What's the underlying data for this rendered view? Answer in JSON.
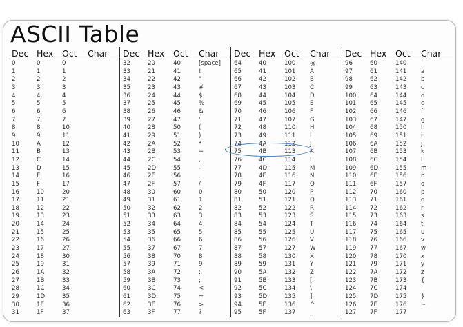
{
  "title": "ASCII Table",
  "headers": [
    "Dec",
    "Hex",
    "Oct",
    "Char"
  ],
  "groups": [
    [
      [
        "0",
        "0",
        "0",
        ""
      ],
      [
        "1",
        "1",
        "1",
        ""
      ],
      [
        "2",
        "2",
        "2",
        ""
      ],
      [
        "3",
        "3",
        "3",
        ""
      ],
      [
        "4",
        "4",
        "4",
        ""
      ],
      [
        "5",
        "5",
        "5",
        ""
      ],
      [
        "6",
        "6",
        "6",
        ""
      ],
      [
        "7",
        "7",
        "7",
        ""
      ],
      [
        "8",
        "8",
        "10",
        ""
      ],
      [
        "9",
        "9",
        "11",
        ""
      ],
      [
        "10",
        "A",
        "12",
        ""
      ],
      [
        "11",
        "B",
        "13",
        ""
      ],
      [
        "12",
        "C",
        "14",
        ""
      ],
      [
        "13",
        "D",
        "15",
        ""
      ],
      [
        "14",
        "E",
        "16",
        ""
      ],
      [
        "15",
        "F",
        "17",
        ""
      ],
      [
        "16",
        "10",
        "20",
        ""
      ],
      [
        "17",
        "11",
        "21",
        ""
      ],
      [
        "18",
        "12",
        "22",
        ""
      ],
      [
        "19",
        "13",
        "23",
        ""
      ],
      [
        "20",
        "14",
        "24",
        ""
      ],
      [
        "21",
        "15",
        "25",
        ""
      ],
      [
        "22",
        "16",
        "26",
        ""
      ],
      [
        "23",
        "17",
        "27",
        ""
      ],
      [
        "24",
        "18",
        "30",
        ""
      ],
      [
        "25",
        "19",
        "31",
        ""
      ],
      [
        "26",
        "1A",
        "32",
        ""
      ],
      [
        "27",
        "1B",
        "33",
        ""
      ],
      [
        "28",
        "1C",
        "34",
        ""
      ],
      [
        "29",
        "1D",
        "35",
        ""
      ],
      [
        "30",
        "1E",
        "36",
        ""
      ],
      [
        "31",
        "1F",
        "37",
        ""
      ]
    ],
    [
      [
        "32",
        "20",
        "40",
        "[space]"
      ],
      [
        "33",
        "21",
        "41",
        "!"
      ],
      [
        "34",
        "22",
        "42",
        "\""
      ],
      [
        "35",
        "23",
        "43",
        "#"
      ],
      [
        "36",
        "24",
        "44",
        "$"
      ],
      [
        "37",
        "25",
        "45",
        "%"
      ],
      [
        "38",
        "26",
        "46",
        "&"
      ],
      [
        "39",
        "27",
        "47",
        "'"
      ],
      [
        "40",
        "28",
        "50",
        "("
      ],
      [
        "41",
        "29",
        "51",
        ")"
      ],
      [
        "42",
        "2A",
        "52",
        "*"
      ],
      [
        "43",
        "2B",
        "53",
        "+"
      ],
      [
        "44",
        "2C",
        "54",
        ","
      ],
      [
        "45",
        "2D",
        "55",
        "-"
      ],
      [
        "46",
        "2E",
        "56",
        "."
      ],
      [
        "47",
        "2F",
        "57",
        "/"
      ],
      [
        "48",
        "30",
        "60",
        "0"
      ],
      [
        "49",
        "31",
        "61",
        "1"
      ],
      [
        "50",
        "32",
        "62",
        "2"
      ],
      [
        "51",
        "33",
        "63",
        "3"
      ],
      [
        "52",
        "34",
        "64",
        "4"
      ],
      [
        "53",
        "35",
        "65",
        "5"
      ],
      [
        "54",
        "36",
        "66",
        "6"
      ],
      [
        "55",
        "37",
        "67",
        "7"
      ],
      [
        "56",
        "38",
        "70",
        "8"
      ],
      [
        "57",
        "39",
        "71",
        "9"
      ],
      [
        "58",
        "3A",
        "72",
        ":"
      ],
      [
        "59",
        "3B",
        "73",
        ";"
      ],
      [
        "60",
        "3C",
        "74",
        "<"
      ],
      [
        "61",
        "3D",
        "75",
        "="
      ],
      [
        "62",
        "3E",
        "76",
        ">"
      ],
      [
        "63",
        "3F",
        "77",
        "?"
      ]
    ],
    [
      [
        "64",
        "40",
        "100",
        "@"
      ],
      [
        "65",
        "41",
        "101",
        "A"
      ],
      [
        "66",
        "42",
        "102",
        "B"
      ],
      [
        "67",
        "43",
        "103",
        "C"
      ],
      [
        "68",
        "44",
        "104",
        "D"
      ],
      [
        "69",
        "45",
        "105",
        "E"
      ],
      [
        "70",
        "46",
        "106",
        "F"
      ],
      [
        "71",
        "47",
        "107",
        "G"
      ],
      [
        "72",
        "48",
        "110",
        "H"
      ],
      [
        "73",
        "49",
        "111",
        "I"
      ],
      [
        "74",
        "4A",
        "112",
        "J"
      ],
      [
        "75",
        "4B",
        "113",
        "K"
      ],
      [
        "76",
        "4C",
        "114",
        "L"
      ],
      [
        "77",
        "4D",
        "115",
        "M"
      ],
      [
        "78",
        "4E",
        "116",
        "N"
      ],
      [
        "79",
        "4F",
        "117",
        "O"
      ],
      [
        "80",
        "50",
        "120",
        "P"
      ],
      [
        "81",
        "51",
        "121",
        "Q"
      ],
      [
        "82",
        "52",
        "122",
        "R"
      ],
      [
        "83",
        "53",
        "123",
        "S"
      ],
      [
        "84",
        "54",
        "124",
        "T"
      ],
      [
        "85",
        "55",
        "125",
        "U"
      ],
      [
        "86",
        "56",
        "126",
        "V"
      ],
      [
        "87",
        "57",
        "127",
        "W"
      ],
      [
        "88",
        "58",
        "130",
        "X"
      ],
      [
        "89",
        "59",
        "131",
        "Y"
      ],
      [
        "90",
        "5A",
        "132",
        "Z"
      ],
      [
        "91",
        "5B",
        "133",
        "["
      ],
      [
        "92",
        "5C",
        "134",
        "\\"
      ],
      [
        "93",
        "5D",
        "135",
        "]"
      ],
      [
        "94",
        "5E",
        "136",
        "^"
      ],
      [
        "95",
        "5F",
        "137",
        "_"
      ]
    ],
    [
      [
        "96",
        "60",
        "140",
        "`"
      ],
      [
        "97",
        "61",
        "141",
        "a"
      ],
      [
        "98",
        "62",
        "142",
        "b"
      ],
      [
        "99",
        "63",
        "143",
        "c"
      ],
      [
        "100",
        "64",
        "144",
        "d"
      ],
      [
        "101",
        "65",
        "145",
        "e"
      ],
      [
        "102",
        "66",
        "146",
        "f"
      ],
      [
        "103",
        "67",
        "147",
        "g"
      ],
      [
        "104",
        "68",
        "150",
        "h"
      ],
      [
        "105",
        "69",
        "151",
        "i"
      ],
      [
        "106",
        "6A",
        "152",
        "j"
      ],
      [
        "107",
        "6B",
        "153",
        "k"
      ],
      [
        "108",
        "6C",
        "154",
        "l"
      ],
      [
        "109",
        "6D",
        "155",
        "m"
      ],
      [
        "110",
        "6E",
        "156",
        "n"
      ],
      [
        "111",
        "6F",
        "157",
        "o"
      ],
      [
        "112",
        "70",
        "160",
        "p"
      ],
      [
        "113",
        "71",
        "161",
        "q"
      ],
      [
        "114",
        "72",
        "162",
        "r"
      ],
      [
        "115",
        "73",
        "163",
        "s"
      ],
      [
        "116",
        "74",
        "164",
        "t"
      ],
      [
        "117",
        "75",
        "165",
        "u"
      ],
      [
        "118",
        "76",
        "166",
        "v"
      ],
      [
        "119",
        "77",
        "167",
        "w"
      ],
      [
        "120",
        "78",
        "170",
        "x"
      ],
      [
        "121",
        "79",
        "171",
        "y"
      ],
      [
        "122",
        "7A",
        "172",
        "z"
      ],
      [
        "123",
        "7B",
        "173",
        "{"
      ],
      [
        "124",
        "7C",
        "174",
        "|"
      ],
      [
        "125",
        "7D",
        "175",
        "}"
      ],
      [
        "126",
        "7E",
        "176",
        "~"
      ],
      [
        "127",
        "7F",
        "177",
        ""
      ]
    ]
  ],
  "highlight": {
    "group": 2,
    "row": 8,
    "color": "#3a78c4"
  },
  "colors": {
    "border": "#b9b9b9",
    "rule": "#333333",
    "text": "#222222"
  }
}
